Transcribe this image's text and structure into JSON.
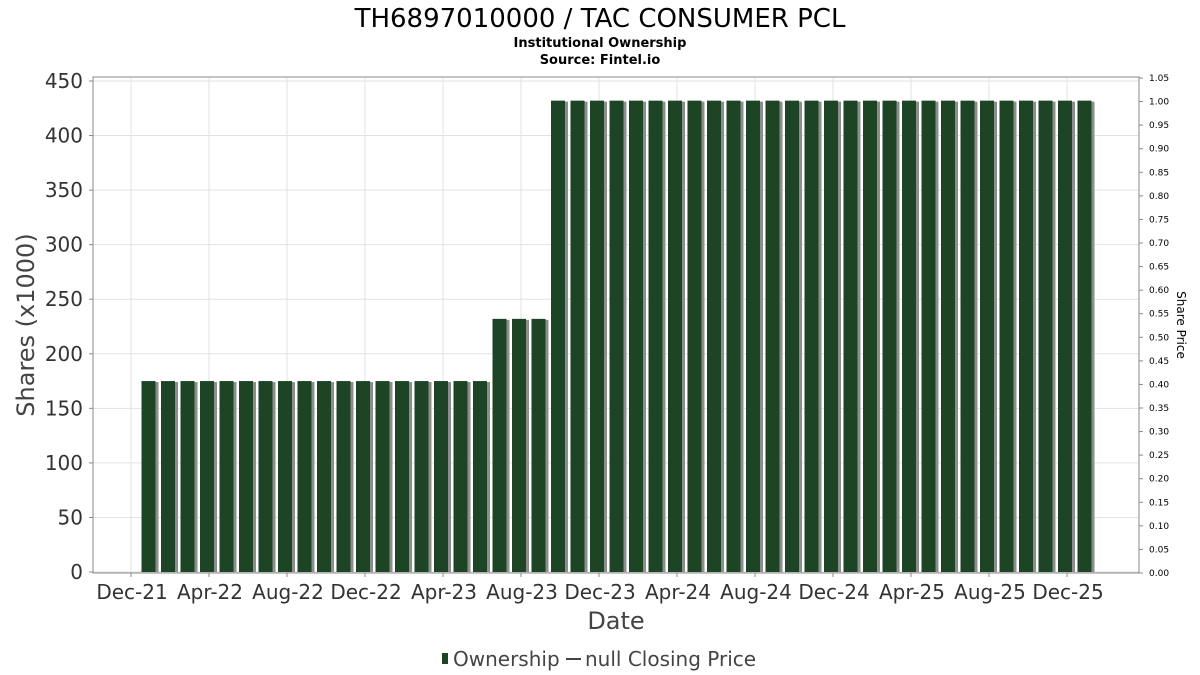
{
  "chart_data": {
    "type": "bar",
    "title": "TH6897010000 / TAC CONSUMER PCL",
    "subtitle_lines": [
      "Institutional Ownership",
      "Source: Fintel.io"
    ],
    "xlabel": "Date",
    "ylabel": "Shares (x1000)",
    "y2label": "Share Price",
    "ylim": [
      0,
      450
    ],
    "y2lim": [
      0,
      1.05
    ],
    "yticks": [
      "0",
      "50",
      "100",
      "150",
      "200",
      "250",
      "300",
      "350",
      "400",
      "450"
    ],
    "y2ticks": [
      "0.00",
      "0.05",
      "0.10",
      "0.15",
      "0.20",
      "0.25",
      "0.30",
      "0.35",
      "0.40",
      "0.45",
      "0.50",
      "0.55",
      "0.60",
      "0.65",
      "0.70",
      "0.75",
      "0.80",
      "0.85",
      "0.90",
      "0.95",
      "1.00",
      "1.05"
    ],
    "xtick_labels": [
      "Dec-21",
      "Apr-22",
      "Aug-22",
      "Dec-22",
      "Apr-23",
      "Aug-23",
      "Dec-23",
      "Apr-24",
      "Aug-24",
      "Dec-24",
      "Apr-25",
      "Aug-25",
      "Dec-25"
    ],
    "grid": true,
    "legend_position": "bottom",
    "series": [
      {
        "name": "Ownership",
        "color": "#1e4426",
        "values": [
          175,
          175,
          175,
          175,
          175,
          175,
          175,
          175,
          175,
          175,
          175,
          175,
          175,
          175,
          175,
          175,
          175,
          175,
          232,
          232,
          232,
          432,
          432,
          432,
          432,
          432,
          432,
          432,
          432,
          432,
          432,
          432,
          432,
          432,
          432,
          432,
          432,
          432,
          432,
          432,
          432,
          432,
          432,
          432,
          432,
          432,
          432,
          432,
          432
        ]
      },
      {
        "name": "null Closing Price",
        "color": "#444444",
        "values": []
      }
    ]
  }
}
